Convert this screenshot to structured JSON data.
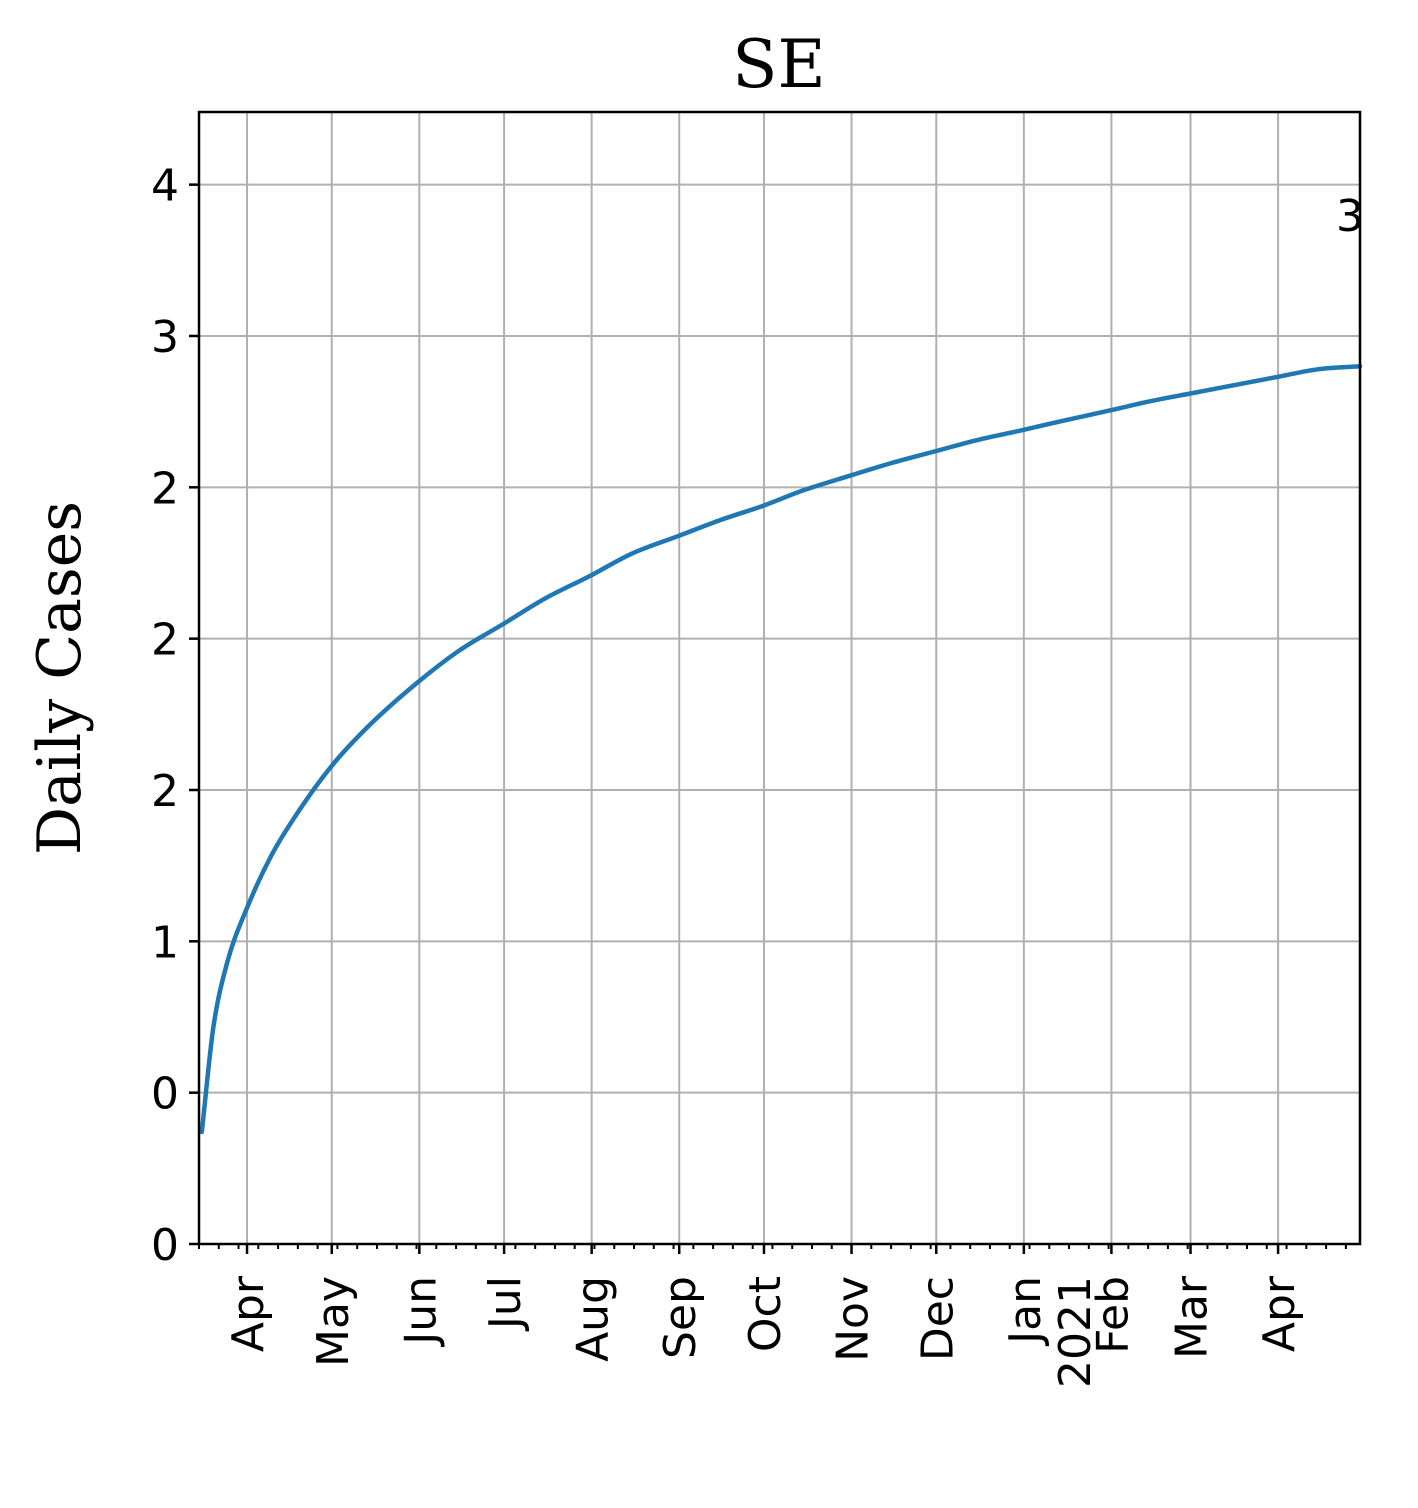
{
  "chart_data": {
    "type": "line",
    "title": "SE",
    "xlabel": "",
    "ylabel": "Daily Cases",
    "grid": true,
    "legend": "none",
    "line_color": "#1f77b4",
    "xlim": [
      "2020-03-15",
      "2021-04-30"
    ],
    "ylim": [
      0,
      3.74
    ],
    "x_ticks": [
      {
        "date": "2020-04-01",
        "label": "Apr"
      },
      {
        "date": "2020-05-01",
        "label": "May"
      },
      {
        "date": "2020-06-01",
        "label": "Jun"
      },
      {
        "date": "2020-07-01",
        "label": "Jul"
      },
      {
        "date": "2020-08-01",
        "label": "Aug"
      },
      {
        "date": "2020-09-01",
        "label": "Sep"
      },
      {
        "date": "2020-10-01",
        "label": "Oct"
      },
      {
        "date": "2020-11-01",
        "label": "Nov"
      },
      {
        "date": "2020-12-01",
        "label": "Dec"
      },
      {
        "date": "2021-01-01",
        "label": "Jan\n2021"
      },
      {
        "date": "2021-02-01",
        "label": "Feb"
      },
      {
        "date": "2021-03-01",
        "label": "Mar"
      },
      {
        "date": "2021-04-01",
        "label": "Apr"
      }
    ],
    "y_ticks": [
      {
        "value": 0.0,
        "label": "0"
      },
      {
        "value": 0.5,
        "label": "0"
      },
      {
        "value": 1.0,
        "label": "1"
      },
      {
        "value": 1.5,
        "label": "2"
      },
      {
        "value": 2.0,
        "label": "2"
      },
      {
        "value": 2.5,
        "label": "2"
      },
      {
        "value": 3.0,
        "label": "3"
      },
      {
        "value": 3.5,
        "label": "4"
      }
    ],
    "annotation": {
      "text": "3",
      "date": "2021-04-30",
      "value": 3.4
    },
    "series": [
      {
        "x": [
          "2020-03-16",
          "2020-03-20",
          "2020-03-25",
          "2020-04-01",
          "2020-04-10",
          "2020-04-20",
          "2020-05-01",
          "2020-05-15",
          "2020-06-01",
          "2020-06-15",
          "2020-07-01",
          "2020-07-15",
          "2020-08-01",
          "2020-08-15",
          "2020-09-01",
          "2020-09-15",
          "2020-10-01",
          "2020-10-15",
          "2020-11-01",
          "2020-11-15",
          "2020-12-01",
          "2020-12-15",
          "2021-01-01",
          "2021-01-15",
          "2021-02-01",
          "2021-02-15",
          "2021-03-01",
          "2021-03-15",
          "2021-04-01",
          "2021-04-15",
          "2021-04-30"
        ],
        "values": [
          0.37,
          0.71,
          0.93,
          1.11,
          1.29,
          1.44,
          1.58,
          1.72,
          1.86,
          1.96,
          2.05,
          2.13,
          2.21,
          2.28,
          2.34,
          2.39,
          2.44,
          2.49,
          2.54,
          2.58,
          2.62,
          2.655,
          2.69,
          2.72,
          2.755,
          2.785,
          2.81,
          2.835,
          2.865,
          2.89,
          2.9
        ]
      }
    ]
  }
}
